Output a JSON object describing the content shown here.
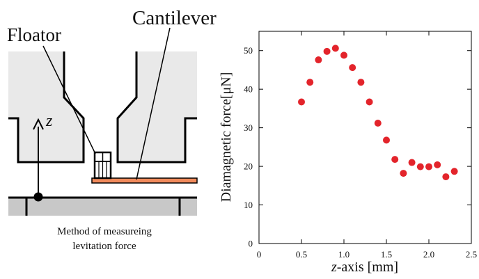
{
  "diagram": {
    "labels": {
      "floator": "Floator",
      "cantilever": "Cantilever",
      "z_axis": "z"
    },
    "caption_lines": [
      "Method of measureing",
      "levitation force"
    ],
    "colors": {
      "magnet_fill": "#e9e9e9",
      "base_fill": "#c8c8c8",
      "cantilever_fill": "#f08a5b",
      "outline": "#000000"
    }
  },
  "chart_data": {
    "type": "scatter",
    "xlabel_italic": "z",
    "xlabel_rest": "-axis [mm]",
    "ylabel": "Diamagnetic force[μN]",
    "xlim": [
      0,
      2.5
    ],
    "ylim": [
      0,
      55
    ],
    "xticks": [
      "0",
      "0.5",
      "1.0",
      "1.5",
      "2.0",
      "2.5"
    ],
    "yticks": [
      "0",
      "10",
      "20",
      "30",
      "40",
      "50"
    ],
    "x_tick_values": [
      0,
      0.5,
      1.0,
      1.5,
      2.0,
      2.5
    ],
    "y_tick_values": [
      0,
      10,
      20,
      30,
      40,
      50
    ],
    "marker_color": "#e3242b",
    "grid": false,
    "series": [
      {
        "x": [
          0.5,
          0.6,
          0.7,
          0.8,
          0.9,
          1.0,
          1.1,
          1.2,
          1.3,
          1.4,
          1.5,
          1.6,
          1.7,
          1.8,
          1.9,
          2.0,
          2.1,
          2.2,
          2.3
        ],
        "y": [
          36.7,
          41.8,
          47.6,
          49.8,
          50.6,
          48.8,
          45.6,
          41.8,
          36.7,
          31.2,
          26.8,
          21.8,
          18.2,
          21.0,
          19.9,
          19.9,
          20.4,
          17.3,
          18.7
        ]
      }
    ]
  }
}
